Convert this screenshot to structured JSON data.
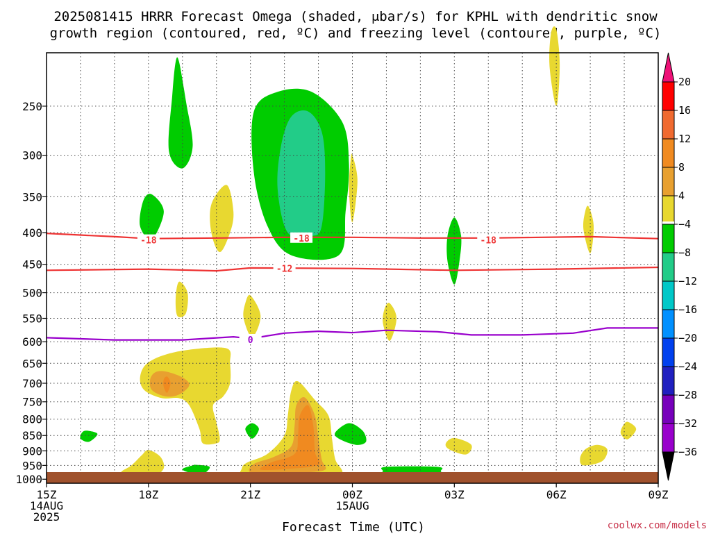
{
  "title_line1": "2025081415 HRRR Forecast Omega (shaded, μbar/s) for KPHL with dendritic snow",
  "title_line2": "growth region (contoured, red, ºC) and freezing level (contoured, purple, ºC)",
  "credit": "coolwx.com/models",
  "colors": {
    "dendritic_contour": "#ee3333",
    "freezing_contour": "#9900cc",
    "ground": "#a0522d"
  },
  "chart_data": {
    "type": "heatmap",
    "xlabel": "Forecast Time (UTC)",
    "x_range_hours_from_15Z": [
      0,
      18
    ],
    "y_range_mb": [
      1015,
      205
    ],
    "y_scale": "log (pressure)",
    "grid": true,
    "x_ticks": [
      {
        "h": 0,
        "lines": [
          "15Z",
          "14AUG",
          "2025"
        ]
      },
      {
        "h": 3,
        "lines": [
          "18Z"
        ]
      },
      {
        "h": 6,
        "lines": [
          "21Z"
        ]
      },
      {
        "h": 9,
        "lines": [
          "00Z",
          "15AUG"
        ]
      },
      {
        "h": 12,
        "lines": [
          "03Z"
        ]
      },
      {
        "h": 15,
        "lines": [
          "06Z"
        ]
      },
      {
        "h": 18,
        "lines": [
          "09Z"
        ]
      }
    ],
    "y_ticks": [
      250,
      300,
      350,
      400,
      450,
      500,
      550,
      600,
      650,
      700,
      750,
      800,
      850,
      900,
      950,
      1000
    ],
    "colorbar": {
      "ticks": [
        "20",
        "16",
        "12",
        "8",
        "4",
        "−4",
        "−8",
        "−12",
        "−16",
        "−20",
        "−24",
        "−28",
        "−32",
        "−36"
      ],
      "upper_colors": [
        "#ff0000",
        "#f06a30",
        "#f08a20",
        "#e8a030",
        "#e8d830",
        "#ffffff"
      ],
      "lower_colors": [
        "#00cc00",
        "#22cc88",
        "#00c8c8",
        "#0090ff",
        "#0040ee",
        "#2020c0",
        "#7700bb",
        "#9900cc",
        "#a0a0a0"
      ],
      "over_color": "#ee1177",
      "under_color": "#000000"
    },
    "contours": [
      {
        "name": "-18",
        "color": "#ee3333",
        "points": [
          [
            0,
            401
          ],
          [
            2,
            406
          ],
          [
            3,
            409
          ],
          [
            5,
            408
          ],
          [
            7,
            407
          ],
          [
            9,
            407
          ],
          [
            11,
            408
          ],
          [
            13,
            408
          ],
          [
            16,
            406
          ],
          [
            18,
            409
          ]
        ],
        "labels": [
          [
            3,
            411
          ],
          [
            7.5,
            408
          ],
          [
            13,
            411
          ]
        ]
      },
      {
        "name": "-12",
        "color": "#ee3333",
        "points": [
          [
            0,
            460
          ],
          [
            3,
            458
          ],
          [
            5,
            461
          ],
          [
            6,
            456
          ],
          [
            9,
            457
          ],
          [
            12,
            460
          ],
          [
            15,
            458
          ],
          [
            18,
            455
          ]
        ],
        "labels": [
          [
            7,
            457
          ]
        ]
      },
      {
        "name": "0",
        "color": "#9900cc",
        "points": [
          [
            0,
            591
          ],
          [
            2,
            596
          ],
          [
            4,
            596
          ],
          [
            5.5,
            589
          ],
          [
            6,
            593
          ],
          [
            7,
            581
          ],
          [
            8,
            577
          ],
          [
            9,
            580
          ],
          [
            10,
            575
          ],
          [
            11.5,
            578
          ],
          [
            12.5,
            585
          ],
          [
            14,
            585
          ],
          [
            15.5,
            581
          ],
          [
            16.5,
            570
          ],
          [
            18,
            570
          ]
        ],
        "labels": [
          [
            6,
            595
          ]
        ]
      }
    ],
    "omega_regions": [
      {
        "category": "-4 to -8",
        "color": "#00cc00",
        "points": [
          [
            7.8,
            237
          ],
          [
            8.7,
            265
          ],
          [
            8.9,
            310
          ],
          [
            8.8,
            370
          ],
          [
            8.6,
            435
          ],
          [
            7.2,
            435
          ],
          [
            6.5,
            390
          ],
          [
            6.1,
            320
          ],
          [
            6.1,
            255
          ],
          [
            6.8,
            237
          ]
        ]
      },
      {
        "category": "-8 to -12",
        "color": "#22cc88",
        "points": [
          [
            7.7,
            255
          ],
          [
            8.1,
            275
          ],
          [
            8.2,
            320
          ],
          [
            8.1,
            390
          ],
          [
            7.8,
            405
          ],
          [
            7.1,
            400
          ],
          [
            6.8,
            340
          ],
          [
            6.9,
            290
          ],
          [
            7.2,
            260
          ]
        ]
      },
      {
        "category": "-4 to -8",
        "color": "#00cc00",
        "points": [
          [
            3.9,
            212
          ],
          [
            4.1,
            245
          ],
          [
            4.3,
            290
          ],
          [
            4.0,
            315
          ],
          [
            3.6,
            295
          ],
          [
            3.7,
            240
          ],
          [
            3.8,
            212
          ]
        ]
      },
      {
        "category": "-4 to -8",
        "color": "#00cc00",
        "points": [
          [
            3.1,
            347
          ],
          [
            3.45,
            370
          ],
          [
            3.1,
            410
          ],
          [
            2.75,
            390
          ],
          [
            2.85,
            355
          ]
        ]
      },
      {
        "category": "-4 to -8",
        "color": "#00cc00",
        "points": [
          [
            12,
            378
          ],
          [
            12.2,
            405
          ],
          [
            12.15,
            445
          ],
          [
            12,
            485
          ],
          [
            11.8,
            445
          ],
          [
            11.8,
            405
          ]
        ]
      },
      {
        "category": "-4 to -8",
        "color": "#00cc00",
        "points": [
          [
            1.2,
            835
          ],
          [
            1.5,
            845
          ],
          [
            1.25,
            870
          ],
          [
            1,
            860
          ],
          [
            1.05,
            840
          ]
        ]
      },
      {
        "category": "-4 to -8",
        "color": "#00cc00",
        "points": [
          [
            4.4,
            948
          ],
          [
            4.8,
            955
          ],
          [
            4.6,
            980
          ],
          [
            4.2,
            975
          ],
          [
            4.0,
            963
          ],
          [
            4.3,
            950
          ]
        ]
      },
      {
        "category": "-4 to -8",
        "color": "#00cc00",
        "points": [
          [
            6.05,
            812
          ],
          [
            6.25,
            830
          ],
          [
            6.05,
            860
          ],
          [
            5.85,
            830
          ]
        ]
      },
      {
        "category": "-4 to -8",
        "color": "#00cc00",
        "points": [
          [
            8.9,
            812
          ],
          [
            9.3,
            835
          ],
          [
            9.4,
            870
          ],
          [
            9.1,
            880
          ],
          [
            8.6,
            860
          ],
          [
            8.5,
            840
          ]
        ]
      },
      {
        "category": "-4 to -8",
        "color": "#00cc00",
        "points": [
          [
            10.0,
            955
          ],
          [
            11.5,
            955
          ],
          [
            11.6,
            970
          ],
          [
            11.5,
            985
          ],
          [
            10.0,
            985
          ],
          [
            9.9,
            970
          ]
        ]
      },
      {
        "category": "4 to 8",
        "color": "#e8d830",
        "points": [
          [
            15.0,
            188
          ],
          [
            15.1,
            215
          ],
          [
            15.0,
            250
          ],
          [
            14.8,
            215
          ],
          [
            14.85,
            190
          ]
        ]
      },
      {
        "category": "4 to 8",
        "color": "#e8d830",
        "points": [
          [
            9,
            300
          ],
          [
            9.15,
            330
          ],
          [
            9.0,
            385
          ],
          [
            8.9,
            340
          ],
          [
            8.95,
            305
          ]
        ]
      },
      {
        "category": "4 to 8",
        "color": "#e8d830",
        "points": [
          [
            5.3,
            335
          ],
          [
            5.5,
            370
          ],
          [
            5.4,
            400
          ],
          [
            5.1,
            430
          ],
          [
            4.85,
            400
          ],
          [
            4.85,
            360
          ]
        ]
      },
      {
        "category": "4 to 8",
        "color": "#e8d830",
        "points": [
          [
            15.95,
            363
          ],
          [
            16.1,
            390
          ],
          [
            16.0,
            432
          ],
          [
            15.8,
            395
          ],
          [
            15.85,
            370
          ]
        ]
      },
      {
        "category": "4 to 8",
        "color": "#e8d830",
        "points": [
          [
            3.9,
            480
          ],
          [
            4.15,
            500
          ],
          [
            4.1,
            540
          ],
          [
            3.85,
            545
          ],
          [
            3.8,
            510
          ]
        ]
      },
      {
        "category": "4 to 8",
        "color": "#e8d830",
        "points": [
          [
            6.0,
            505
          ],
          [
            6.3,
            545
          ],
          [
            6.05,
            590
          ],
          [
            5.8,
            550
          ],
          [
            5.85,
            520
          ]
        ]
      },
      {
        "category": "4 to 8",
        "color": "#e8d830",
        "points": [
          [
            10.1,
            520
          ],
          [
            10.3,
            550
          ],
          [
            10.1,
            598
          ],
          [
            9.9,
            560
          ],
          [
            9.95,
            530
          ]
        ]
      },
      {
        "category": "4 to 8",
        "color": "#e8d830",
        "points": [
          [
            5.3,
            615
          ],
          [
            5.4,
            650
          ],
          [
            5.4,
            700
          ],
          [
            5.2,
            735
          ],
          [
            4.9,
            760
          ],
          [
            5.0,
            810
          ],
          [
            5.1,
            860
          ],
          [
            5.0,
            875
          ],
          [
            4.6,
            875
          ],
          [
            4.5,
            830
          ],
          [
            4.2,
            760
          ],
          [
            3.9,
            740
          ],
          [
            3.4,
            740
          ],
          [
            2.9,
            720
          ],
          [
            2.75,
            690
          ],
          [
            2.9,
            655
          ],
          [
            3.4,
            632
          ],
          [
            4.2,
            618
          ]
        ]
      },
      {
        "category": "8 to 12",
        "color": "#e8a030",
        "points": [
          [
            3.5,
            670
          ],
          [
            4.0,
            685
          ],
          [
            4.2,
            705
          ],
          [
            3.9,
            730
          ],
          [
            3.5,
            735
          ],
          [
            3.1,
            718
          ],
          [
            3.05,
            690
          ],
          [
            3.2,
            672
          ]
        ]
      },
      {
        "category": "12 to 16",
        "color": "#f08a20",
        "points": [
          [
            3.55,
            683
          ],
          [
            3.65,
            700
          ],
          [
            3.55,
            725
          ],
          [
            3.45,
            710
          ],
          [
            3.45,
            690
          ]
        ]
      },
      {
        "category": "4 to 8",
        "color": "#e8d830",
        "points": [
          [
            7.4,
            695
          ],
          [
            7.9,
            745
          ],
          [
            8.3,
            790
          ],
          [
            8.4,
            860
          ],
          [
            8.5,
            930
          ],
          [
            8.7,
            975
          ],
          [
            8.2,
            985
          ],
          [
            7.0,
            990
          ],
          [
            5.8,
            990
          ],
          [
            5.75,
            960
          ],
          [
            5.9,
            940
          ],
          [
            6.5,
            910
          ],
          [
            7.0,
            850
          ],
          [
            7.1,
            790
          ],
          [
            7.2,
            720
          ]
        ]
      },
      {
        "category": "8 to 12",
        "color": "#e8a030",
        "points": [
          [
            7.6,
            738
          ],
          [
            7.9,
            790
          ],
          [
            8.0,
            860
          ],
          [
            8.1,
            930
          ],
          [
            8.2,
            965
          ],
          [
            7.6,
            975
          ],
          [
            6.7,
            978
          ],
          [
            6.0,
            975
          ],
          [
            6.1,
            945
          ],
          [
            6.7,
            920
          ],
          [
            7.2,
            885
          ],
          [
            7.3,
            820
          ],
          [
            7.35,
            760
          ]
        ]
      },
      {
        "category": "12 to 16",
        "color": "#f08a20",
        "points": [
          [
            7.7,
            760
          ],
          [
            7.85,
            820
          ],
          [
            7.9,
            905
          ],
          [
            8.0,
            948
          ],
          [
            7.1,
            962
          ],
          [
            6.3,
            965
          ],
          [
            6.6,
            940
          ],
          [
            7.3,
            910
          ],
          [
            7.4,
            850
          ],
          [
            7.45,
            790
          ]
        ]
      },
      {
        "category": "4 to 8",
        "color": "#e8d830",
        "points": [
          [
            3.0,
            897
          ],
          [
            3.35,
            920
          ],
          [
            3.45,
            960
          ],
          [
            3.15,
            990
          ],
          [
            2.6,
            990
          ],
          [
            2.2,
            975
          ],
          [
            2.5,
            950
          ],
          [
            2.8,
            915
          ]
        ]
      },
      {
        "category": "4 to 8",
        "color": "#e8d830",
        "points": [
          [
            12.0,
            858
          ],
          [
            12.5,
            880
          ],
          [
            12.35,
            912
          ],
          [
            11.85,
            895
          ],
          [
            11.75,
            875
          ]
        ]
      },
      {
        "category": "4 to 8",
        "color": "#e8d830",
        "points": [
          [
            16.2,
            880
          ],
          [
            16.5,
            895
          ],
          [
            16.35,
            935
          ],
          [
            15.8,
            950
          ],
          [
            15.7,
            925
          ],
          [
            15.85,
            895
          ]
        ]
      },
      {
        "category": "4 to 8",
        "color": "#e8d830",
        "points": [
          [
            17.1,
            808
          ],
          [
            17.35,
            830
          ],
          [
            17.1,
            862
          ],
          [
            16.9,
            845
          ],
          [
            16.95,
            822
          ]
        ]
      }
    ]
  }
}
